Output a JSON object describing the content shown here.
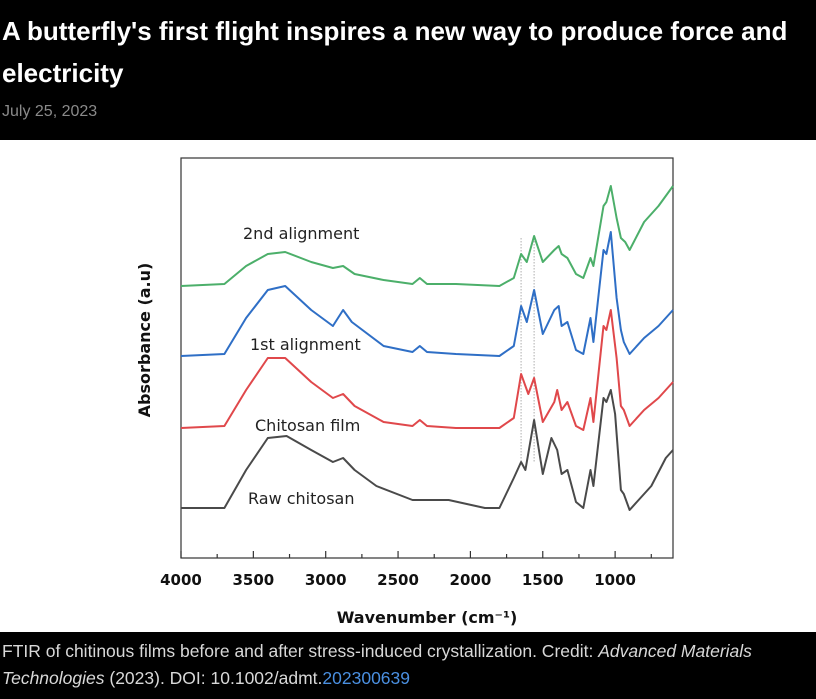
{
  "article": {
    "title": "A butterfly's first flight inspires a new way to produce force and electricity",
    "date": "July 25, 2023"
  },
  "caption": {
    "text": "FTIR of chitinous films before and after stress-induced crystallization. Credit: ",
    "journal": "Advanced Materials Technologies",
    "year_doi": " (2023). DOI: 10.1002/admt.",
    "doi_link": "202300639"
  },
  "chart_data": {
    "type": "line",
    "title": "",
    "xlabel": "Wavenumber (cm⁻¹)",
    "ylabel": "Absorbance (a.u)",
    "xlim": [
      4000,
      600
    ],
    "ylim": [
      0,
      100
    ],
    "x_reversed": true,
    "xticks": [
      "4000",
      "3500",
      "3000",
      "2500",
      "2000",
      "1500",
      "1000"
    ],
    "xtick_values": [
      4000,
      3500,
      3000,
      2500,
      2000,
      1500,
      1000
    ],
    "grid": false,
    "legend": "inline labels",
    "reference_lines": [
      1650,
      1560
    ],
    "series": [
      {
        "name": "2nd alignment",
        "color": "#4caf6a",
        "points": [
          [
            4000,
            68
          ],
          [
            3700,
            68.5
          ],
          [
            3550,
            73
          ],
          [
            3400,
            76
          ],
          [
            3280,
            76.5
          ],
          [
            3100,
            74
          ],
          [
            2950,
            72.5
          ],
          [
            2880,
            73
          ],
          [
            2800,
            71
          ],
          [
            2600,
            69.5
          ],
          [
            2400,
            68.5
          ],
          [
            2350,
            70
          ],
          [
            2300,
            68.5
          ],
          [
            2100,
            68.5
          ],
          [
            1800,
            68
          ],
          [
            1700,
            70
          ],
          [
            1650,
            76
          ],
          [
            1610,
            74
          ],
          [
            1560,
            80.5
          ],
          [
            1500,
            74
          ],
          [
            1420,
            77
          ],
          [
            1390,
            78
          ],
          [
            1370,
            76
          ],
          [
            1330,
            75
          ],
          [
            1270,
            71
          ],
          [
            1220,
            70
          ],
          [
            1170,
            75
          ],
          [
            1150,
            73
          ],
          [
            1080,
            88
          ],
          [
            1060,
            89
          ],
          [
            1030,
            93
          ],
          [
            990,
            85
          ],
          [
            960,
            80
          ],
          [
            930,
            79
          ],
          [
            900,
            77
          ],
          [
            800,
            84
          ],
          [
            700,
            88
          ],
          [
            600,
            93
          ]
        ]
      },
      {
        "name": "1st alignment",
        "color": "#2f6fc6",
        "points": [
          [
            4000,
            50.5
          ],
          [
            3700,
            51
          ],
          [
            3550,
            60
          ],
          [
            3400,
            67
          ],
          [
            3280,
            68
          ],
          [
            3100,
            62
          ],
          [
            2950,
            58
          ],
          [
            2880,
            62
          ],
          [
            2820,
            59
          ],
          [
            2600,
            53
          ],
          [
            2400,
            51.5
          ],
          [
            2350,
            53
          ],
          [
            2300,
            51.5
          ],
          [
            2100,
            51
          ],
          [
            1800,
            50.5
          ],
          [
            1700,
            53
          ],
          [
            1650,
            63
          ],
          [
            1610,
            59
          ],
          [
            1560,
            67
          ],
          [
            1500,
            56
          ],
          [
            1420,
            62
          ],
          [
            1390,
            63
          ],
          [
            1370,
            58
          ],
          [
            1330,
            59
          ],
          [
            1270,
            52
          ],
          [
            1220,
            51
          ],
          [
            1170,
            60
          ],
          [
            1150,
            54
          ],
          [
            1080,
            77
          ],
          [
            1060,
            76
          ],
          [
            1030,
            81.5
          ],
          [
            990,
            65
          ],
          [
            960,
            57
          ],
          [
            940,
            54
          ],
          [
            900,
            51
          ],
          [
            800,
            55
          ],
          [
            700,
            58
          ],
          [
            600,
            62
          ]
        ]
      },
      {
        "name": "Chitosan film",
        "color": "#e0484b",
        "points": [
          [
            4000,
            32.5
          ],
          [
            3700,
            33
          ],
          [
            3550,
            42
          ],
          [
            3400,
            50
          ],
          [
            3280,
            50
          ],
          [
            3100,
            44
          ],
          [
            2950,
            40
          ],
          [
            2880,
            41
          ],
          [
            2800,
            38
          ],
          [
            2600,
            34
          ],
          [
            2400,
            33
          ],
          [
            2350,
            34.5
          ],
          [
            2300,
            33
          ],
          [
            2100,
            32.5
          ],
          [
            1800,
            32.5
          ],
          [
            1700,
            35
          ],
          [
            1650,
            46
          ],
          [
            1600,
            41
          ],
          [
            1560,
            45
          ],
          [
            1500,
            34
          ],
          [
            1420,
            39
          ],
          [
            1400,
            42
          ],
          [
            1370,
            37
          ],
          [
            1330,
            39
          ],
          [
            1270,
            33
          ],
          [
            1220,
            32
          ],
          [
            1170,
            40
          ],
          [
            1150,
            34
          ],
          [
            1080,
            58
          ],
          [
            1060,
            57
          ],
          [
            1030,
            62
          ],
          [
            990,
            50
          ],
          [
            960,
            38
          ],
          [
            940,
            37
          ],
          [
            900,
            33
          ],
          [
            800,
            37
          ],
          [
            700,
            40
          ],
          [
            600,
            44
          ]
        ]
      },
      {
        "name": "Raw chitosan",
        "color": "#4a4a4a",
        "points": [
          [
            4000,
            12.5
          ],
          [
            3700,
            12.5
          ],
          [
            3550,
            22
          ],
          [
            3400,
            30
          ],
          [
            3270,
            30.5
          ],
          [
            3100,
            27
          ],
          [
            2950,
            24
          ],
          [
            2880,
            25
          ],
          [
            2800,
            22
          ],
          [
            2650,
            18
          ],
          [
            2400,
            14.5
          ],
          [
            2150,
            14.5
          ],
          [
            1900,
            12.5
          ],
          [
            1800,
            12.5
          ],
          [
            1700,
            20
          ],
          [
            1650,
            24
          ],
          [
            1620,
            22
          ],
          [
            1560,
            34.5
          ],
          [
            1500,
            21
          ],
          [
            1440,
            30
          ],
          [
            1400,
            27
          ],
          [
            1370,
            21
          ],
          [
            1330,
            22
          ],
          [
            1270,
            14
          ],
          [
            1220,
            12.5
          ],
          [
            1170,
            22
          ],
          [
            1150,
            18
          ],
          [
            1080,
            40
          ],
          [
            1060,
            39
          ],
          [
            1030,
            42
          ],
          [
            1000,
            36
          ],
          [
            960,
            17
          ],
          [
            940,
            16
          ],
          [
            900,
            12
          ],
          [
            850,
            14
          ],
          [
            750,
            18
          ],
          [
            650,
            25
          ],
          [
            600,
            27
          ]
        ]
      }
    ]
  }
}
